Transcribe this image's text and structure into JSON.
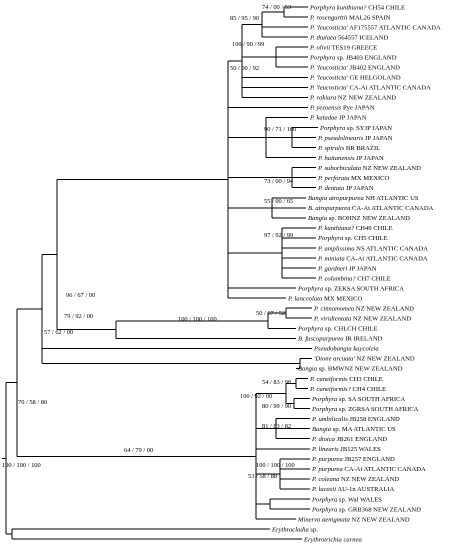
{
  "taxa": [
    {
      "name": "Porphyra kunthiana?",
      "rest": " CH54 CHILE"
    },
    {
      "name": "P. rosengurttii",
      "rest": " MAL26 SPAIN"
    },
    {
      "name": "P. 'leucosticta'",
      "rest": " AF175557 ATLANTIC CANADA"
    },
    {
      "name": "P. thulaea",
      "rest": " 564557 ICELAND"
    },
    {
      "name": "P. olivii",
      "rest": " TES19 GREECE"
    },
    {
      "name": "Porphyra",
      "rest": " sp. JB403 ENGLAND"
    },
    {
      "name": "P. 'leucosticta'",
      "rest": " JB402 ENGLAND"
    },
    {
      "name": "P. 'leucosticta'",
      "rest": " GE HELGOLAND"
    },
    {
      "name": "P. 'leucosticta'",
      "rest": " CA-At ATLANTIC CANADA"
    },
    {
      "name": "P. rakiura",
      "rest": " NZ NEW ZEALAND"
    },
    {
      "name": "P. yezoensis",
      "rest": " Pye JAPAN"
    },
    {
      "name": "P. katadae",
      "rest": " JP JAPAN"
    },
    {
      "name": "Porphyra",
      "rest": " sp. SYJP JAPAN"
    },
    {
      "name": "P. pseudolinearis",
      "rest": " JP JAPAN"
    },
    {
      "name": "P. spiralis",
      "rest": " BR BRAZIL"
    },
    {
      "name": "P. haitanensis",
      "rest": " JP JAPAN"
    },
    {
      "name": "P. suborbiculata",
      "rest": " NZ NEW ZEALAND"
    },
    {
      "name": "P. perforata",
      "rest": " MX MEXICO"
    },
    {
      "name": "P. dentata",
      "rest": " JP JAPAN"
    },
    {
      "name": "Bangia atropurpurea",
      "rest": " NH ATLANTIC US"
    },
    {
      "name": "B. atropurpurea",
      "rest": " CA-At ATLANTIC CANADA"
    },
    {
      "name": "Bangia",
      "rest": " sp. BOHNZ NEW ZEALAND"
    },
    {
      "name": "P. kunthiana?",
      "rest": " CH49 CHILE"
    },
    {
      "name": "Porphyra",
      "rest": " sp. CH5 CHILE"
    },
    {
      "name": "P. amplissima",
      "rest": " NS ATLANTIC CANADA"
    },
    {
      "name": "P. miniata",
      "rest": " CA-At ATLANTIC CANADA"
    },
    {
      "name": "P. gardneri",
      "rest": " JP JAPAN"
    },
    {
      "name": "P. columbina?",
      "rest": " CH7 CHILE"
    },
    {
      "name": "Porphyra",
      "rest": " sp. ZEKSA SOUTH AFRICA"
    },
    {
      "name": "P. lanceolata",
      "rest": " MX MEXICO"
    },
    {
      "name": "P. cinnamomea",
      "rest": " NZ NEW ZEALAND"
    },
    {
      "name": "P. viridientata",
      "rest": " NZ NEW ZEALAND"
    },
    {
      "name": "Porphyra",
      "rest": " sp. CHLCH CHILE"
    },
    {
      "name": "B. fuscopurpurea",
      "rest": " IR IRELAND"
    },
    {
      "name": "Pseudobangia kaycoleia",
      "rest": ""
    },
    {
      "name": "'Dione arcuata'",
      "rest": " NZ NEW ZEALAND"
    },
    {
      "name": "Bangia",
      "rest": " sp. BMWNZ NEW ZEALAND"
    },
    {
      "name": "P. cuneiformis",
      "rest": " CH3 CHILE"
    },
    {
      "name": "P. cuneiformis?",
      "rest": " CH4 CHILE"
    },
    {
      "name": "Porphyra",
      "rest": " sp. SA SOUTH AFRICA"
    },
    {
      "name": "Porphyra",
      "rest": " sp. ZGRSA SOUTH AFRICA"
    },
    {
      "name": "P. umbilicalis",
      "rest": " JB258 ENGLAND"
    },
    {
      "name": "Bangia",
      "rest": " sp. MA ATLANTIC US"
    },
    {
      "name": "P. dioica",
      "rest": " JB261 ENGLAND"
    },
    {
      "name": "P. linearis",
      "rest": " JB125 WALES"
    },
    {
      "name": "P. purpurea",
      "rest": " JB257 ENGLAND"
    },
    {
      "name": "P. purpurea",
      "rest": " CA-At ATLANTIC CANADA"
    },
    {
      "name": "P. coleana",
      "rest": " NZ NEW ZEALAND"
    },
    {
      "name": "P. lucasii",
      "rest": " AU-1n AUSTRALIA"
    },
    {
      "name": "Porphyra",
      "rest": " sp. Wal WALES"
    },
    {
      "name": "Porphyra",
      "rest": " sp. GRB368 NEW ZEALAND"
    },
    {
      "name": "Minerva aenigmata",
      "rest": " NZ NEW ZEALAND"
    },
    {
      "name": "Erythrocladia",
      "rest": " sp."
    },
    {
      "name": "Erythrotrichia carnea",
      "rest": ""
    }
  ],
  "support_labels": [
    "74 / 00 / 53",
    "85 / 95 / 90",
    "100 / 90 / 99",
    "50 / 00 / 92",
    "90 / 71 / 100",
    "73 / 00 / 94",
    "55 / 00 / 65",
    "97 / 92 / 99",
    "96 / 67 / 00",
    "79 / 92 / 00",
    "50 / 67 / 52",
    "100 / 100 / 100",
    "57 / 62 / 00",
    "54 / 83 / 98",
    "100 / 92 / 00",
    "80 / 99 / 90",
    "81 / 83 / 82",
    "64 / 79 / 00",
    "100 / 100 / 100",
    "53 / 58 / 88",
    "70 / 58 / 80",
    "100 / 100 / 100"
  ]
}
